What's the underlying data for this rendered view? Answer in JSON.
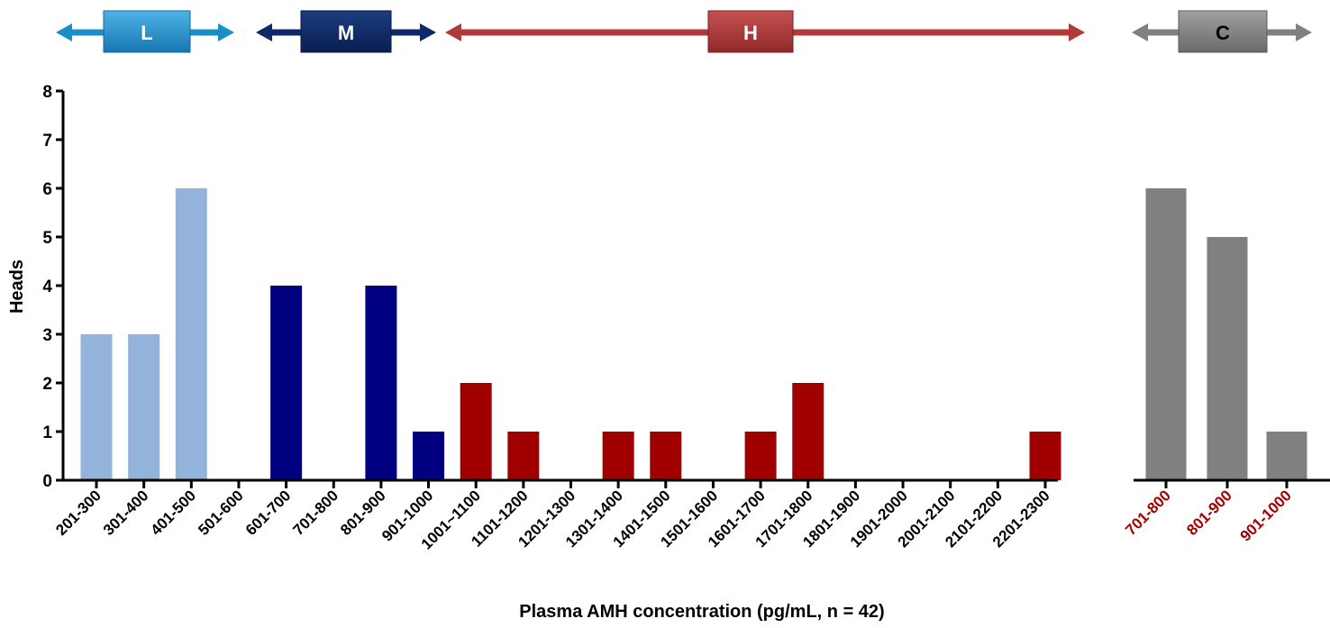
{
  "chart_data": [
    {
      "type": "bar",
      "ylabel": "Heads",
      "xlabel": "Plasma AMH concentration (pg/mL, n = 42)",
      "ylim": [
        0,
        8
      ],
      "yticks": [
        "0",
        "1",
        "2",
        "3",
        "4",
        "5",
        "6",
        "7",
        "8"
      ],
      "categories": [
        "201-300",
        "301-400",
        "401-500",
        "501-600",
        "601-700",
        "701-800",
        "801-900",
        "901-1000",
        "1001~1100",
        "1101-1200",
        "1201-1300",
        "1301-1400",
        "1401-1500",
        "1501-1600",
        "1601-1700",
        "1701-1800",
        "1801-1900",
        "1901-2000",
        "2001-2100",
        "2101-2200",
        "2201-2300"
      ],
      "values": [
        3,
        3,
        6,
        0,
        4,
        0,
        4,
        1,
        2,
        1,
        0,
        1,
        1,
        0,
        1,
        2,
        0,
        0,
        0,
        0,
        1
      ],
      "groups": [
        "L",
        "L",
        "L",
        "L",
        "M",
        "M",
        "M",
        "M",
        "H",
        "H",
        "H",
        "H",
        "H",
        "H",
        "H",
        "H",
        "H",
        "H",
        "H",
        "H",
        "H"
      ],
      "group_colors": {
        "L": "#93b3da",
        "M": "#000080",
        "H": "#a00000"
      },
      "grid": false
    },
    {
      "type": "bar",
      "categories": [
        "701-800",
        "801-900",
        "901-1000"
      ],
      "values": [
        6,
        5,
        1
      ],
      "ylim": [
        0,
        8
      ],
      "bar_color": "#808080",
      "tick_label_color": "#a00000",
      "grid": false
    }
  ],
  "range_labels": [
    {
      "label": "L",
      "color": "#1a8fc7"
    },
    {
      "label": "M",
      "color": "#0d2a66"
    },
    {
      "label": "H",
      "color": "#b03a3a"
    },
    {
      "label": "C",
      "color": "#808080"
    }
  ]
}
